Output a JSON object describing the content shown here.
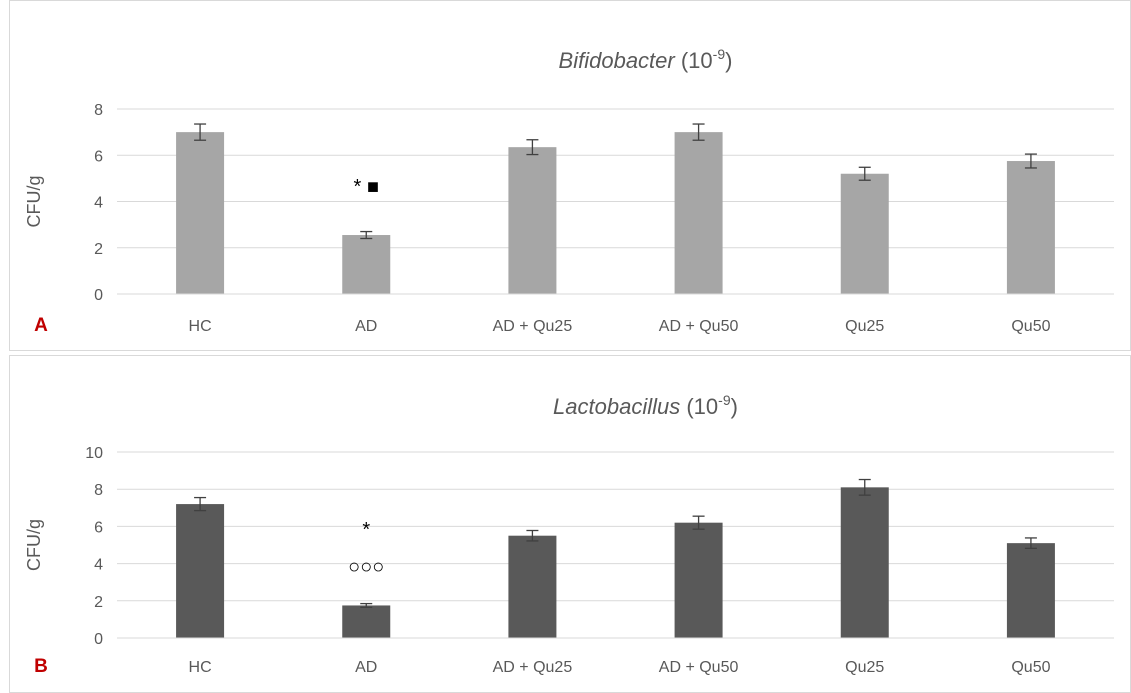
{
  "chart_data": [
    {
      "type": "bar",
      "panel_label": "A",
      "title_italic": "Bifidobacter",
      "title_suffix": "(10",
      "title_exponent": "-9",
      "title_close": ")",
      "ylabel": "CFU/g",
      "xlabel": "",
      "ylim": [
        0,
        8
      ],
      "yticks": [
        0,
        2,
        4,
        6,
        8
      ],
      "categories": [
        "HC",
        "AD",
        "AD + Qu25",
        "AD + Qu50",
        "Qu25",
        "Qu50"
      ],
      "values": [
        7.0,
        2.55,
        6.35,
        7.0,
        5.2,
        5.75
      ],
      "errors": [
        0.35,
        0.15,
        0.32,
        0.35,
        0.28,
        0.3
      ],
      "bar_color": "#a6a6a6",
      "grid": true,
      "annotations": [
        {
          "category": "AD",
          "text": "* ■"
        }
      ]
    },
    {
      "type": "bar",
      "panel_label": "B",
      "title_italic": "Lactobacillus",
      "title_suffix": "(10",
      "title_exponent": "-9",
      "title_close": ")",
      "ylabel": "CFU/g",
      "xlabel": "",
      "ylim": [
        0,
        10
      ],
      "yticks": [
        0,
        2,
        4,
        6,
        8,
        10
      ],
      "categories": [
        "HC",
        "AD",
        "AD + Qu25",
        "AD + Qu50",
        "Qu25",
        "Qu50"
      ],
      "values": [
        7.2,
        1.75,
        5.5,
        6.2,
        8.1,
        5.1
      ],
      "errors": [
        0.35,
        0.1,
        0.28,
        0.35,
        0.42,
        0.28
      ],
      "bar_color": "#595959",
      "grid": true,
      "annotations": [
        {
          "category": "AD",
          "text": "*"
        },
        {
          "category": "AD",
          "text": "○○○"
        }
      ]
    }
  ]
}
